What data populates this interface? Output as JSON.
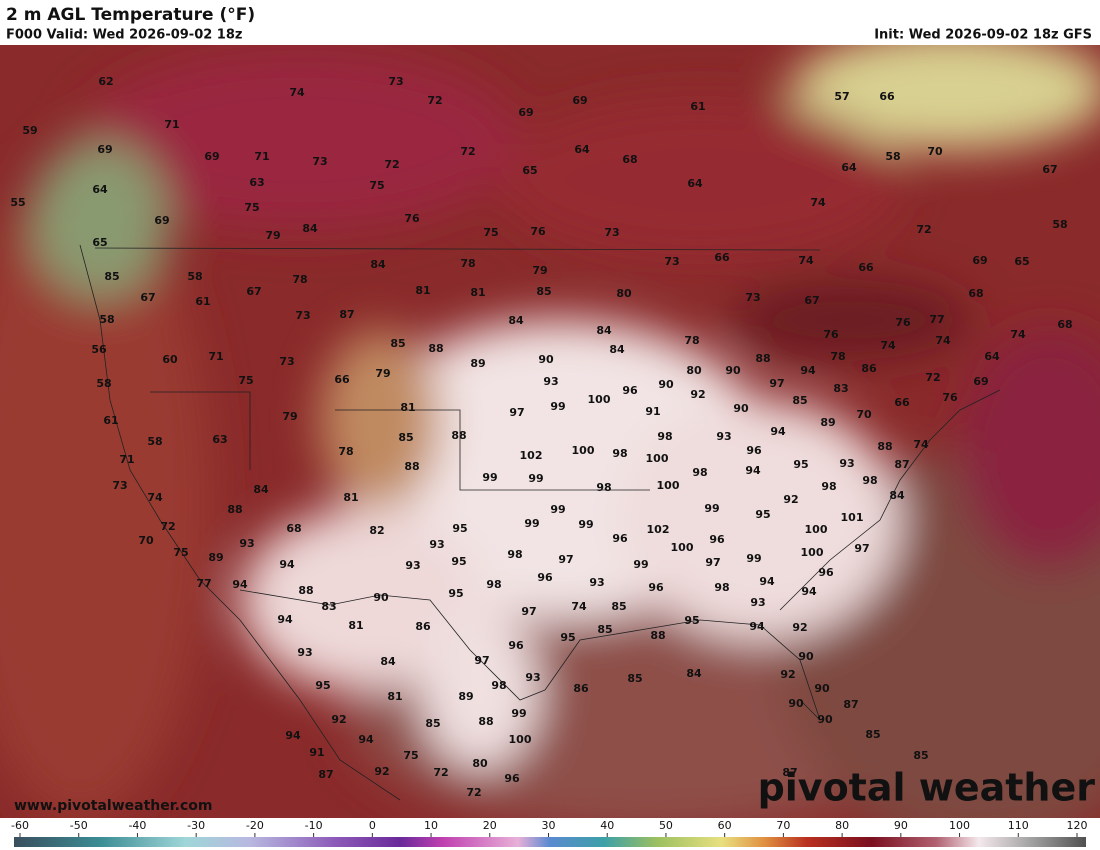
{
  "header": {
    "title": "2 m AGL Temperature (°F)",
    "valid": "F000 Valid: Wed 2026-09-02 18z",
    "init": "Init: Wed 2026-09-02 18z GFS"
  },
  "footer": {
    "website": "www.pivotalweather.com",
    "watermark": "pivotal weather"
  },
  "colorbar": {
    "ticks": [
      -60,
      -50,
      -40,
      -30,
      -20,
      -10,
      0,
      10,
      20,
      30,
      40,
      50,
      60,
      70,
      80,
      90,
      100,
      110,
      120
    ]
  },
  "map": {
    "labels": [
      62,
      74,
      73,
      72,
      69,
      69,
      61,
      57,
      66,
      59,
      71,
      69,
      69,
      71,
      73,
      72,
      72,
      64,
      68,
      58,
      70,
      67,
      64,
      63,
      75,
      65,
      64,
      64,
      55,
      75,
      76,
      69,
      79,
      84,
      75,
      76,
      73,
      74,
      72,
      58,
      65,
      85,
      58,
      78,
      84,
      78,
      79,
      66,
      73,
      74,
      66,
      69,
      65,
      67,
      61,
      67,
      81,
      81,
      85,
      80,
      73,
      67,
      68,
      58,
      73,
      87,
      84,
      84,
      76,
      77,
      74,
      68,
      56,
      60,
      71,
      73,
      85,
      88,
      89,
      90,
      84,
      78,
      88,
      76,
      74,
      74,
      64,
      58,
      75,
      66,
      79,
      93,
      100,
      96,
      90,
      80,
      90,
      97,
      94,
      78,
      86,
      72,
      69,
      61,
      79,
      81,
      97,
      99,
      91,
      92,
      90,
      85,
      83,
      66,
      76,
      70,
      58,
      63,
      85,
      88,
      93,
      98,
      94,
      89,
      88,
      74,
      78,
      102,
      100,
      98,
      100,
      96,
      93,
      87,
      71,
      88,
      99,
      99,
      98,
      98,
      94,
      95,
      98,
      98,
      73,
      84,
      81,
      100,
      74,
      84,
      88,
      99,
      95,
      92,
      101,
      99,
      72,
      68,
      82,
      99,
      99,
      102,
      100,
      95,
      70,
      93,
      93,
      96,
      100,
      96,
      99,
      100,
      97,
      75,
      89,
      94,
      95,
      98,
      97,
      93,
      97,
      99,
      77,
      94,
      88,
      95,
      98,
      96,
      93,
      96,
      98,
      94,
      96,
      94,
      83,
      90,
      94,
      81,
      86,
      97,
      74,
      85,
      93,
      95,
      94,
      92,
      88,
      85,
      95,
      93,
      96,
      84,
      97,
      90,
      86,
      85,
      84,
      95,
      81,
      98,
      93,
      89,
      92,
      90,
      87,
      90,
      92,
      85,
      88,
      99,
      90,
      94,
      94,
      100,
      85,
      91,
      75,
      85,
      80,
      92,
      72,
      87,
      96,
      87,
      72
    ]
  }
}
